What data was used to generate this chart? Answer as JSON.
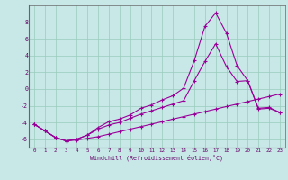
{
  "bg_color": "#c8e8e8",
  "line_color": "#990099",
  "grid_color": "#99ccbb",
  "xlabel": "Windchill (Refroidissement éolien,°C)",
  "xlim": [
    -0.5,
    23.5
  ],
  "ylim": [
    -7,
    10
  ],
  "xticks": [
    0,
    1,
    2,
    3,
    4,
    5,
    6,
    7,
    8,
    9,
    10,
    11,
    12,
    13,
    14,
    15,
    16,
    17,
    18,
    19,
    20,
    21,
    22,
    23
  ],
  "yticks": [
    -6,
    -4,
    -2,
    0,
    2,
    4,
    6,
    8
  ],
  "line1_x": [
    0,
    1,
    2,
    3,
    4,
    5,
    6,
    7,
    8,
    9,
    10,
    11,
    12,
    13,
    14,
    15,
    16,
    17,
    18,
    19,
    20,
    21,
    22,
    23
  ],
  "line1_y": [
    -4.2,
    -5.0,
    -5.8,
    -6.2,
    -6.1,
    -5.9,
    -5.7,
    -5.4,
    -5.1,
    -4.8,
    -4.5,
    -4.2,
    -3.9,
    -3.6,
    -3.3,
    -3.0,
    -2.7,
    -2.4,
    -2.1,
    -1.8,
    -1.5,
    -1.2,
    -0.9,
    -0.6
  ],
  "line2_x": [
    0,
    1,
    2,
    3,
    4,
    5,
    6,
    7,
    8,
    9,
    10,
    11,
    12,
    13,
    14,
    15,
    16,
    17,
    18,
    19,
    20,
    21,
    22,
    23
  ],
  "line2_y": [
    -4.2,
    -5.0,
    -5.8,
    -6.2,
    -6.0,
    -5.5,
    -4.8,
    -4.3,
    -4.0,
    -3.5,
    -3.0,
    -2.6,
    -2.2,
    -1.8,
    -1.4,
    1.0,
    3.3,
    5.4,
    2.7,
    0.9,
    1.0,
    -2.4,
    -2.3,
    -2.8
  ],
  "line3_x": [
    0,
    1,
    2,
    3,
    4,
    5,
    6,
    7,
    8,
    9,
    10,
    11,
    12,
    13,
    14,
    15,
    16,
    17,
    18,
    19,
    20,
    21,
    22,
    23
  ],
  "line3_y": [
    -4.2,
    -5.0,
    -5.8,
    -6.2,
    -6.0,
    -5.5,
    -4.6,
    -3.9,
    -3.6,
    -3.1,
    -2.3,
    -1.9,
    -1.3,
    -0.8,
    0.1,
    3.4,
    7.5,
    9.1,
    6.7,
    2.8,
    1.0,
    -2.3,
    -2.2,
    -2.8
  ]
}
